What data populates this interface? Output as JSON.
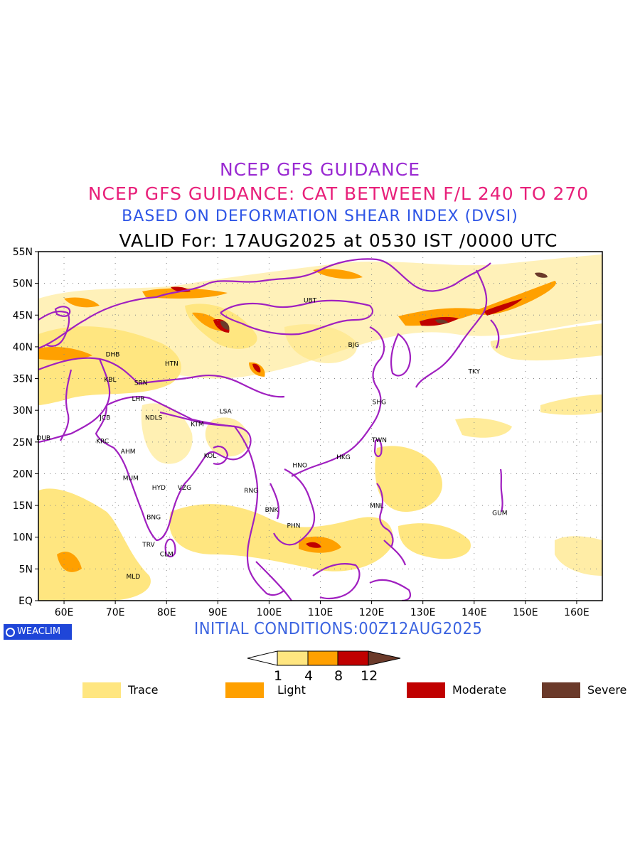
{
  "titles": {
    "line1": "NCEP GFS GUIDANCE",
    "line2": "NCEP GFS GUIDANCE: CAT BETWEEN F/L 240 TO 270",
    "line3": "BASED ON DEFORMATION SHEAR INDEX (DVSI)",
    "line4": "VALID For: 17AUG2025 at 0530 IST /0000 UTC"
  },
  "map": {
    "lon_range": [
      55,
      165
    ],
    "lat_range": [
      0,
      55
    ],
    "lat_labels": [
      "55N",
      "50N",
      "45N",
      "40N",
      "35N",
      "30N",
      "25N",
      "20N",
      "15N",
      "10N",
      "5N",
      "EQ"
    ],
    "lon_labels": [
      "60E",
      "70E",
      "80E",
      "90E",
      "100E",
      "110E",
      "120E",
      "130E",
      "140E",
      "150E",
      "160E"
    ],
    "colors": {
      "trace": "#ffe680",
      "light": "#ffa000",
      "moderate": "#c00000",
      "severe": "#6b3a2a",
      "boundary": "#a020c0"
    },
    "stations": [
      {
        "code": "UBT",
        "lon": 108,
        "lat": 47
      },
      {
        "code": "BJG",
        "lon": 116.5,
        "lat": 40
      },
      {
        "code": "TKY",
        "lon": 140,
        "lat": 35.8
      },
      {
        "code": "DHB",
        "lon": 69.5,
        "lat": 38.5
      },
      {
        "code": "HTN",
        "lon": 81,
        "lat": 37
      },
      {
        "code": "KBL",
        "lon": 69,
        "lat": 34.5
      },
      {
        "code": "SRN",
        "lon": 75,
        "lat": 34
      },
      {
        "code": "LHR",
        "lon": 74.5,
        "lat": 31.5
      },
      {
        "code": "SHG",
        "lon": 121.5,
        "lat": 31
      },
      {
        "code": "LSA",
        "lon": 91.5,
        "lat": 29.5
      },
      {
        "code": "JCB",
        "lon": 68,
        "lat": 28.5
      },
      {
        "code": "NDLS",
        "lon": 77.5,
        "lat": 28.5
      },
      {
        "code": "KTM",
        "lon": 86,
        "lat": 27.5
      },
      {
        "code": "DUB",
        "lon": 56,
        "lat": 25.3
      },
      {
        "code": "KRC",
        "lon": 67.5,
        "lat": 24.8
      },
      {
        "code": "TWN",
        "lon": 121.5,
        "lat": 25
      },
      {
        "code": "AHM",
        "lon": 72.5,
        "lat": 23.2
      },
      {
        "code": "KOL",
        "lon": 88.5,
        "lat": 22.5
      },
      {
        "code": "HKG",
        "lon": 114.5,
        "lat": 22.3
      },
      {
        "code": "HNO",
        "lon": 106,
        "lat": 21
      },
      {
        "code": "MUM",
        "lon": 73,
        "lat": 19
      },
      {
        "code": "HYD",
        "lon": 78.5,
        "lat": 17.5
      },
      {
        "code": "VZG",
        "lon": 83.5,
        "lat": 17.5
      },
      {
        "code": "RNG",
        "lon": 96.5,
        "lat": 17
      },
      {
        "code": "BNK",
        "lon": 100.5,
        "lat": 14
      },
      {
        "code": "MNL",
        "lon": 121,
        "lat": 14.6
      },
      {
        "code": "GUM",
        "lon": 145,
        "lat": 13.5
      },
      {
        "code": "BNG",
        "lon": 77.5,
        "lat": 12.8
      },
      {
        "code": "PHN",
        "lon": 104.8,
        "lat": 11.5
      },
      {
        "code": "TRV",
        "lon": 76.5,
        "lat": 8.5
      },
      {
        "code": "CLM",
        "lon": 80,
        "lat": 7
      },
      {
        "code": "MLD",
        "lon": 73.5,
        "lat": 3.5
      }
    ]
  },
  "footer": {
    "logo_text": "WEACLIM",
    "initial_conditions": "INITIAL CONDITIONS:00Z12AUG2025",
    "colorbar_ticks": [
      "1",
      "4",
      "8",
      "12"
    ],
    "legend": [
      {
        "label": "Trace",
        "color": "#ffe680"
      },
      {
        "label": "Light",
        "color": "#ffa000"
      },
      {
        "label": "Moderate",
        "color": "#c00000"
      },
      {
        "label": "Severe",
        "color": "#6b3a2a"
      }
    ]
  }
}
